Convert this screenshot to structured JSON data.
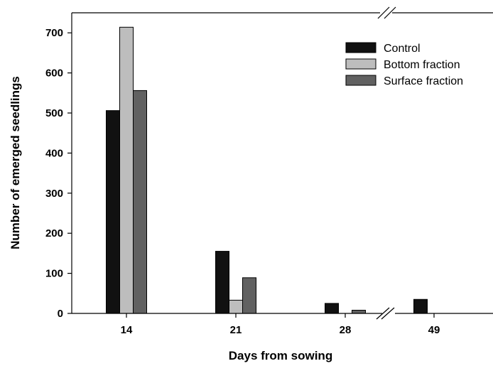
{
  "chart_data": {
    "type": "bar",
    "categories": [
      "14",
      "21",
      "28",
      "49"
    ],
    "series": [
      {
        "name": "Control",
        "color": "#111111",
        "values": [
          506,
          155,
          25,
          35
        ]
      },
      {
        "name": "Bottom fraction",
        "color": "#bdbdbd",
        "values": [
          714,
          33,
          0,
          0
        ]
      },
      {
        "name": "Surface fraction",
        "color": "#616161",
        "values": [
          556,
          89,
          8,
          0
        ]
      }
    ],
    "xlabel": "Days from sowing",
    "ylabel": "Number of emerged seedlings",
    "ylim": [
      0,
      750
    ],
    "yticks": [
      0,
      100,
      200,
      300,
      400,
      500,
      600,
      700
    ],
    "grid": false,
    "legend_position": "top-right",
    "axis_break": "between 28 and 49"
  }
}
